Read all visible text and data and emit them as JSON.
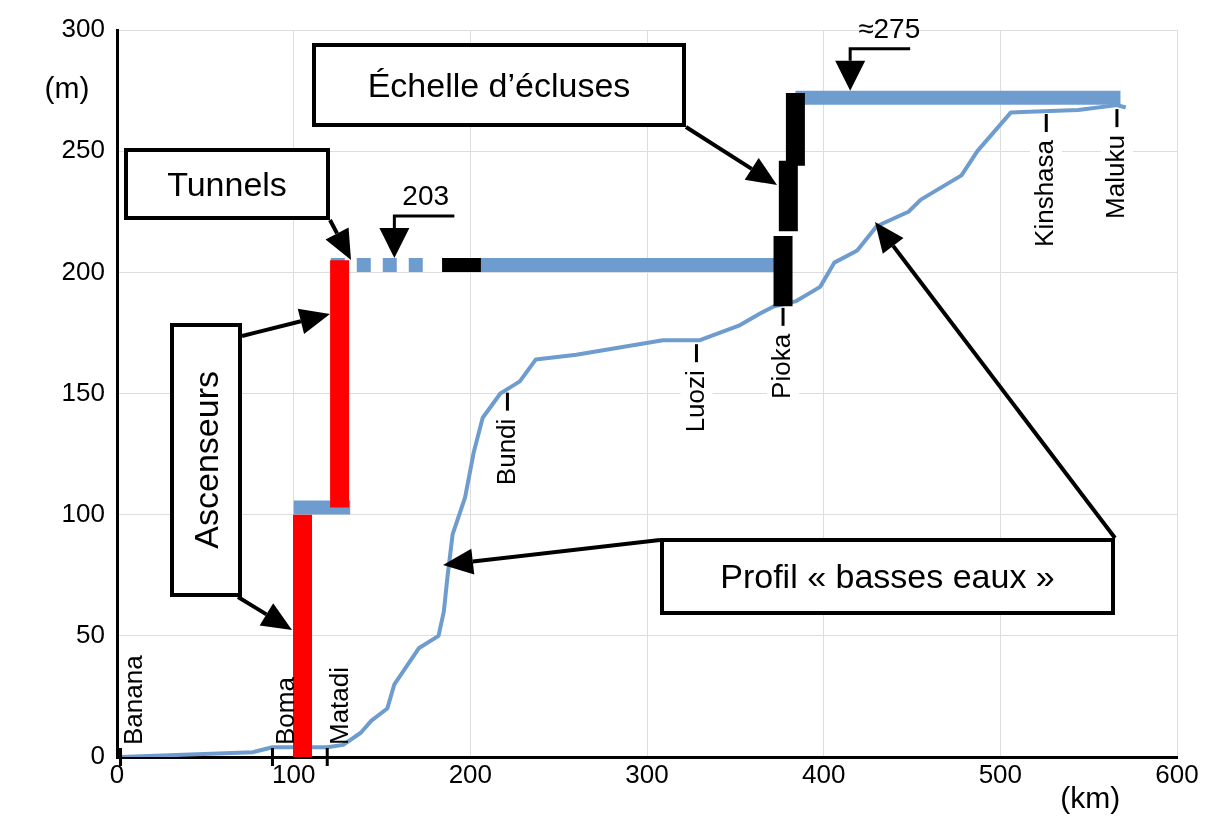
{
  "chart_data": {
    "type": "line",
    "xlabel": "(km)",
    "ylabel": "(m)",
    "xlim": [
      0,
      600
    ],
    "xticks": [
      0,
      100,
      200,
      300,
      400,
      500,
      600
    ],
    "ylim": [
      0,
      300
    ],
    "yticks": [
      0,
      50,
      100,
      150,
      200,
      250,
      300
    ],
    "grid": true,
    "legend": false,
    "marker": "none",
    "series": [
      {
        "type": "line",
        "color": "#6e9ccf",
        "x": [
          2,
          77,
          88,
          119,
          128,
          138,
          144,
          153,
          157,
          171,
          182,
          185,
          187,
          190,
          197,
          202,
          207,
          217,
          228,
          237,
          260,
          309,
          330,
          352,
          364,
          372,
          384,
          398,
          406,
          419,
          430,
          448,
          455,
          478,
          487,
          506,
          544,
          566,
          571
        ],
        "values": [
          0,
          2,
          4,
          4,
          5,
          10,
          15,
          20,
          30,
          45,
          50,
          60,
          74,
          92,
          107,
          126,
          140,
          150,
          155,
          164,
          166,
          172,
          172,
          178,
          183,
          186,
          188,
          194,
          204,
          209,
          219,
          225,
          230,
          240,
          250,
          266,
          267,
          269,
          268
        ]
      },
      {
        "color": "#6e9ccf",
        "x": [
          100,
          132
        ],
        "values": [
          103,
          103
        ]
      },
      {
        "color": "#6e9ccf",
        "line_style": "dashed",
        "x": [
          121,
          176
        ],
        "values": [
          203,
          203
        ]
      },
      {
        "color": "#6e9ccf",
        "x": [
          206,
          372
        ],
        "values": [
          203,
          203
        ]
      },
      {
        "color": "#6e9ccf",
        "x": [
          384,
          568
        ],
        "values": [
          272,
          272
        ]
      },
      {
        "type": "line",
        "color": "#ff0000",
        "x": [
          105,
          105
        ],
        "values": [
          0,
          100
        ]
      },
      {
        "type": "line",
        "color": "#ff0000",
        "x": [
          126,
          126
        ],
        "values": [
          103,
          205
        ]
      },
      {
        "color": "#000000",
        "x": [
          184,
          206
        ],
        "values": [
          203,
          203
        ]
      },
      {
        "color": "#000000",
        "x": [
          377,
          377
        ],
        "values": [
          186,
          215
        ]
      },
      {
        "color": "#000000",
        "x": [
          380,
          380
        ],
        "values": [
          217,
          246
        ]
      },
      {
        "color": "#000000",
        "x": [
          384,
          384
        ],
        "values": [
          244,
          274
        ]
      }
    ],
    "annotations": [
      "Tunnels",
      {
        "text": "203",
        "x": 157,
        "y": 203
      },
      "Échelle d’écluses",
      {
        "text": "≈275",
        "x": 415,
        "y": 272
      },
      "Ascenseurs",
      "Profil « basses eaux »",
      {
        "text": "Banana",
        "x": 2,
        "y": 0
      },
      {
        "text": "Boma",
        "x": 88,
        "y": 4
      },
      {
        "text": "Matadi",
        "x": 119,
        "y": 4
      },
      {
        "text": "Bundi",
        "x": 221,
        "y": 152
      },
      {
        "text": "Luozi",
        "x": 328,
        "y": 172
      },
      {
        "text": "Pioka",
        "x": 377,
        "y": 187
      },
      {
        "text": "Kinshasa",
        "x": 526,
        "y": 267
      },
      {
        "text": "Maluku",
        "x": 566,
        "y": 269
      }
    ]
  }
}
